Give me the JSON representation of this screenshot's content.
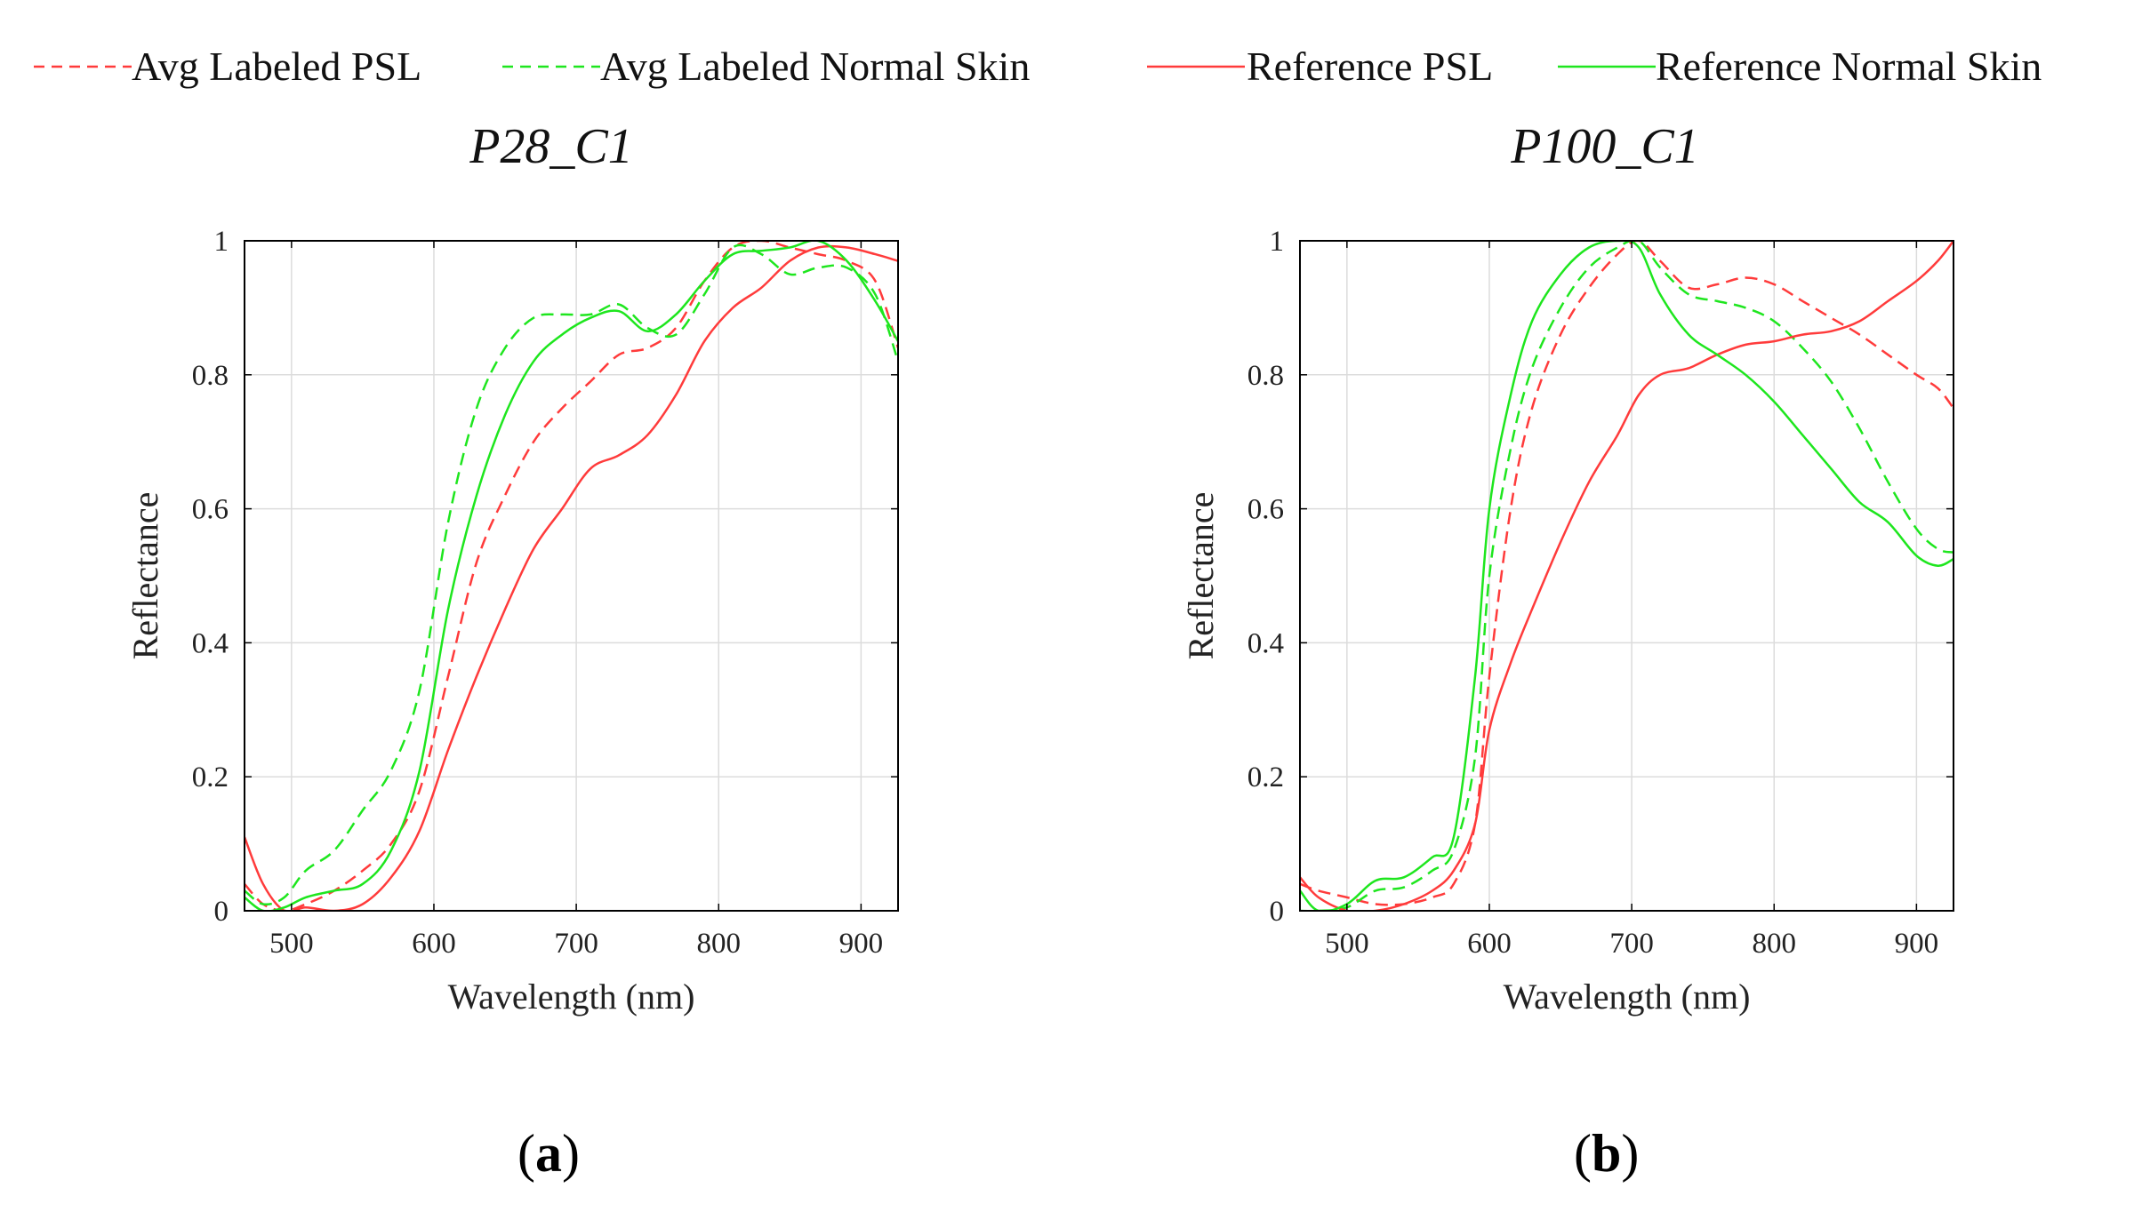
{
  "colors": {
    "psl": "#ff3b3b",
    "normal": "#1ee61e",
    "grid": "#dcdcdc",
    "axis": "#000000"
  },
  "legend": [
    {
      "label": "Avg Labeled PSL",
      "color": "#ff3b3b",
      "dashed": true
    },
    {
      "label": "Avg Labeled Normal Skin",
      "color": "#1ee61e",
      "dashed": true
    },
    {
      "label": "Reference PSL",
      "color": "#ff3b3b",
      "dashed": false
    },
    {
      "label": "Reference Normal Skin",
      "color": "#1ee61e",
      "dashed": false
    }
  ],
  "chart_data": [
    {
      "type": "line",
      "title": "P28_C1",
      "panel_label": "(a)",
      "panel_letter": "a",
      "xlabel": "Wavelength (nm)",
      "ylabel": "Reflectance",
      "xlim": [
        467,
        926
      ],
      "ylim": [
        0,
        1
      ],
      "xticks": [
        500,
        600,
        700,
        800,
        900
      ],
      "yticks": [
        0,
        0.2,
        0.4,
        0.6,
        0.8,
        1
      ],
      "ytick_labels": [
        "0",
        "0.2",
        "0.4",
        "0.6",
        "0.8",
        "1"
      ],
      "grid": true,
      "series": [
        {
          "name": "Avg Labeled PSL",
          "color": "#ff3b3b",
          "dashed": true,
          "x": [
            467,
            480,
            495,
            510,
            530,
            550,
            570,
            590,
            610,
            630,
            650,
            670,
            690,
            710,
            730,
            750,
            770,
            790,
            810,
            830,
            850,
            870,
            890,
            910,
            926
          ],
          "y": [
            0.04,
            0.01,
            0.0,
            0.01,
            0.03,
            0.06,
            0.1,
            0.18,
            0.35,
            0.52,
            0.62,
            0.7,
            0.75,
            0.79,
            0.83,
            0.84,
            0.87,
            0.94,
            0.99,
            1.0,
            0.99,
            0.98,
            0.97,
            0.94,
            0.84
          ]
        },
        {
          "name": "Avg Labeled Normal Skin",
          "color": "#1ee61e",
          "dashed": true,
          "x": [
            467,
            480,
            495,
            510,
            530,
            550,
            570,
            590,
            610,
            630,
            650,
            670,
            690,
            710,
            730,
            750,
            770,
            790,
            810,
            830,
            850,
            870,
            890,
            910,
            926
          ],
          "y": [
            0.03,
            0.01,
            0.02,
            0.06,
            0.09,
            0.15,
            0.21,
            0.33,
            0.58,
            0.75,
            0.84,
            0.885,
            0.89,
            0.89,
            0.905,
            0.87,
            0.86,
            0.92,
            0.99,
            0.98,
            0.95,
            0.96,
            0.96,
            0.92,
            0.82
          ]
        },
        {
          "name": "Reference PSL",
          "color": "#ff3b3b",
          "dashed": false,
          "x": [
            467,
            480,
            495,
            510,
            530,
            550,
            570,
            590,
            610,
            630,
            650,
            670,
            690,
            710,
            730,
            750,
            770,
            790,
            810,
            830,
            850,
            870,
            890,
            910,
            926
          ],
          "y": [
            0.11,
            0.04,
            0.0,
            0.005,
            0.0,
            0.01,
            0.05,
            0.12,
            0.24,
            0.35,
            0.45,
            0.54,
            0.6,
            0.66,
            0.68,
            0.71,
            0.77,
            0.85,
            0.9,
            0.93,
            0.97,
            0.99,
            0.99,
            0.98,
            0.97
          ]
        },
        {
          "name": "Reference Normal Skin",
          "color": "#1ee61e",
          "dashed": false,
          "x": [
            467,
            480,
            495,
            510,
            530,
            550,
            570,
            590,
            610,
            630,
            650,
            670,
            690,
            710,
            730,
            750,
            770,
            790,
            810,
            830,
            850,
            870,
            890,
            910,
            926
          ],
          "y": [
            0.02,
            0.0,
            0.005,
            0.02,
            0.03,
            0.04,
            0.09,
            0.21,
            0.45,
            0.62,
            0.74,
            0.82,
            0.86,
            0.885,
            0.895,
            0.865,
            0.89,
            0.94,
            0.98,
            0.985,
            0.99,
            1.0,
            0.97,
            0.91,
            0.85
          ]
        }
      ]
    },
    {
      "type": "line",
      "title": "P100_C1",
      "panel_label": "(b)",
      "panel_letter": "b",
      "xlabel": "Wavelength (nm)",
      "ylabel": "Reflectance",
      "xlim": [
        467,
        926
      ],
      "ylim": [
        0,
        1
      ],
      "xticks": [
        500,
        600,
        700,
        800,
        900
      ],
      "yticks": [
        0,
        0.2,
        0.4,
        0.6,
        0.8,
        1
      ],
      "ytick_labels": [
        "0",
        "0.2",
        "0.4",
        "0.6",
        "0.8",
        "1"
      ],
      "grid": true,
      "series": [
        {
          "name": "Avg Labeled PSL",
          "color": "#ff3b3b",
          "dashed": true,
          "x": [
            467,
            480,
            500,
            520,
            540,
            560,
            575,
            590,
            600,
            615,
            630,
            650,
            670,
            690,
            705,
            720,
            740,
            760,
            780,
            800,
            820,
            840,
            860,
            880,
            900,
            915,
            926
          ],
          "y": [
            0.04,
            0.03,
            0.02,
            0.01,
            0.01,
            0.02,
            0.04,
            0.13,
            0.35,
            0.6,
            0.75,
            0.86,
            0.93,
            0.98,
            1.0,
            0.97,
            0.93,
            0.935,
            0.945,
            0.935,
            0.91,
            0.885,
            0.86,
            0.83,
            0.8,
            0.78,
            0.75
          ]
        },
        {
          "name": "Avg Labeled Normal Skin",
          "color": "#1ee61e",
          "dashed": true,
          "x": [
            467,
            480,
            500,
            520,
            540,
            560,
            575,
            590,
            600,
            615,
            630,
            650,
            670,
            690,
            705,
            720,
            740,
            760,
            780,
            800,
            820,
            840,
            860,
            880,
            900,
            915,
            926
          ],
          "y": [
            0.0,
            0.0,
            0.005,
            0.03,
            0.035,
            0.06,
            0.09,
            0.23,
            0.5,
            0.69,
            0.81,
            0.9,
            0.96,
            0.99,
            1.0,
            0.96,
            0.92,
            0.91,
            0.9,
            0.88,
            0.84,
            0.79,
            0.72,
            0.64,
            0.57,
            0.54,
            0.535
          ]
        },
        {
          "name": "Reference PSL",
          "color": "#ff3b3b",
          "dashed": false,
          "x": [
            467,
            480,
            500,
            520,
            540,
            560,
            575,
            590,
            600,
            615,
            630,
            650,
            670,
            690,
            705,
            720,
            740,
            760,
            780,
            800,
            820,
            840,
            860,
            880,
            900,
            915,
            926
          ],
          "y": [
            0.05,
            0.02,
            0.0,
            0.0,
            0.01,
            0.03,
            0.06,
            0.13,
            0.27,
            0.37,
            0.45,
            0.55,
            0.64,
            0.71,
            0.77,
            0.8,
            0.81,
            0.83,
            0.845,
            0.85,
            0.86,
            0.865,
            0.88,
            0.91,
            0.94,
            0.97,
            1.0
          ]
        },
        {
          "name": "Reference Normal Skin",
          "color": "#1ee61e",
          "dashed": false,
          "x": [
            467,
            480,
            500,
            520,
            540,
            560,
            575,
            590,
            600,
            615,
            630,
            650,
            670,
            690,
            705,
            720,
            740,
            760,
            780,
            800,
            820,
            840,
            860,
            880,
            900,
            915,
            926
          ],
          "y": [
            0.03,
            0.0,
            0.01,
            0.045,
            0.05,
            0.08,
            0.11,
            0.35,
            0.6,
            0.77,
            0.88,
            0.95,
            0.99,
            1.0,
            0.99,
            0.92,
            0.86,
            0.83,
            0.8,
            0.76,
            0.71,
            0.66,
            0.61,
            0.58,
            0.53,
            0.515,
            0.525
          ]
        }
      ]
    }
  ]
}
